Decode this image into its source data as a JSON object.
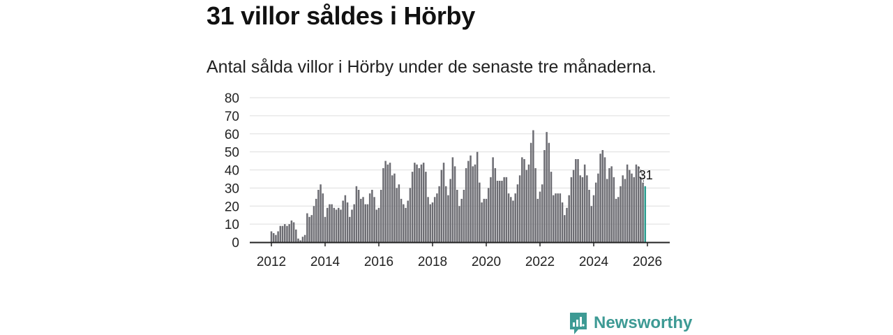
{
  "header": {
    "title": "31 villor såldes i Hörby",
    "subtitle": "Antal sålda villor i Hörby under de senaste tre månaderna."
  },
  "brand": {
    "name": "Newsworthy",
    "color": "#3d9a94"
  },
  "colors": {
    "bar": "#6d6d73",
    "highlight": "#2a9d8f",
    "axis": "#222222",
    "grid": "#dddddd"
  },
  "chart_data": {
    "type": "bar",
    "title": "31 villor såldes i Hörby",
    "subtitle": "Antal sålda villor i Hörby under de senaste tre månaderna.",
    "xlabel": "",
    "ylabel": "",
    "ylim": [
      0,
      80
    ],
    "yticks": [
      "0",
      "10",
      "20",
      "30",
      "40",
      "50",
      "60",
      "70",
      "80"
    ],
    "xticks": [
      "2012",
      "2014",
      "2016",
      "2018",
      "2020",
      "2022",
      "2024",
      "2026"
    ],
    "x_start": 2012.0,
    "x_step": 0.08333,
    "grid": true,
    "values": [
      6,
      5,
      4,
      6,
      9,
      9,
      10,
      9,
      10,
      12,
      11,
      7,
      2,
      1,
      3,
      4,
      16,
      14,
      15,
      20,
      24,
      29,
      32,
      27,
      14,
      19,
      21,
      21,
      19,
      18,
      19,
      18,
      23,
      26,
      22,
      14,
      18,
      21,
      31,
      29,
      24,
      25,
      21,
      21,
      27,
      29,
      25,
      18,
      19,
      29,
      41,
      45,
      43,
      44,
      37,
      38,
      30,
      32,
      24,
      21,
      19,
      23,
      30,
      39,
      44,
      43,
      41,
      43,
      44,
      39,
      25,
      21,
      22,
      25,
      27,
      31,
      40,
      44,
      31,
      26,
      35,
      47,
      42,
      29,
      20,
      24,
      29,
      41,
      45,
      48,
      42,
      43,
      50,
      33,
      22,
      24,
      24,
      30,
      36,
      47,
      41,
      34,
      34,
      34,
      36,
      36,
      27,
      25,
      23,
      27,
      32,
      37,
      47,
      46,
      40,
      43,
      55,
      62,
      41,
      24,
      28,
      32,
      51,
      61,
      55,
      39,
      26,
      27,
      27,
      27,
      22,
      15,
      19,
      26,
      36,
      40,
      46,
      46,
      37,
      36,
      43,
      37,
      29,
      20,
      26,
      33,
      38,
      49,
      51,
      47,
      35,
      41,
      42,
      36,
      24,
      25,
      31,
      37,
      35,
      43,
      40,
      38,
      36,
      43,
      42,
      36,
      33,
      31
    ],
    "highlight_value": 31,
    "annotation": "31"
  }
}
